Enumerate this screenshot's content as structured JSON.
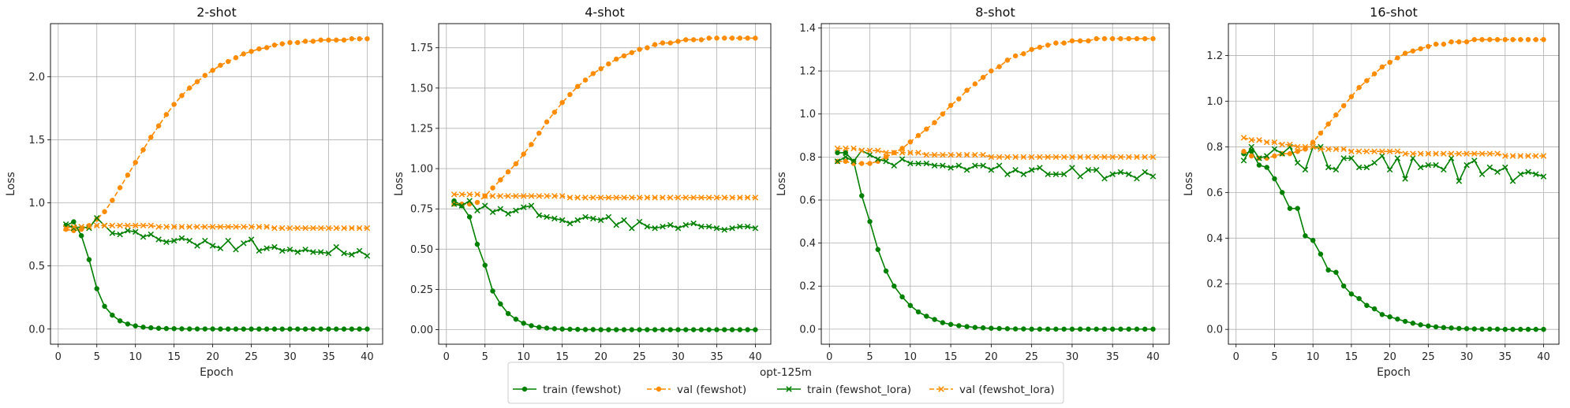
{
  "chart_data": [
    {
      "type": "line",
      "title": "2-shot",
      "xlabel": "Epoch",
      "ylabel": "Loss",
      "xlim": [
        -1,
        42
      ],
      "ylim": [
        -0.12,
        2.42
      ],
      "xticks": [
        0,
        5,
        10,
        15,
        20,
        25,
        30,
        35,
        40
      ],
      "yticks": [
        0.0,
        0.5,
        1.0,
        1.5,
        2.0
      ],
      "ytick_labels": [
        "0.0",
        "0.5",
        "1.0",
        "1.5",
        "2.0"
      ],
      "grid": true,
      "x": [
        1,
        2,
        3,
        4,
        5,
        6,
        7,
        8,
        9,
        10,
        11,
        12,
        13,
        14,
        15,
        16,
        17,
        18,
        19,
        20,
        21,
        22,
        23,
        24,
        25,
        26,
        27,
        28,
        29,
        30,
        31,
        32,
        33,
        34,
        35,
        36,
        37,
        38,
        39,
        40
      ],
      "series": [
        {
          "name": "train (fewshot)",
          "values": [
            0.82,
            0.85,
            0.74,
            0.55,
            0.32,
            0.18,
            0.11,
            0.065,
            0.04,
            0.025,
            0.015,
            0.01,
            0.006,
            0.004,
            0.003,
            0.002,
            0.001,
            0.001,
            0.001,
            0.001,
            0,
            0,
            0,
            0,
            0,
            0,
            0,
            0,
            0,
            0,
            0,
            0,
            0,
            0,
            0,
            0,
            0,
            0,
            0,
            0
          ]
        },
        {
          "name": "val (fewshot)",
          "values": [
            0.79,
            0.78,
            0.79,
            0.82,
            0.87,
            0.93,
            1.02,
            1.12,
            1.22,
            1.32,
            1.42,
            1.52,
            1.61,
            1.7,
            1.78,
            1.85,
            1.91,
            1.96,
            2.01,
            2.05,
            2.09,
            2.12,
            2.15,
            2.18,
            2.2,
            2.22,
            2.23,
            2.25,
            2.26,
            2.27,
            2.27,
            2.28,
            2.28,
            2.29,
            2.29,
            2.29,
            2.29,
            2.3,
            2.3,
            2.3
          ]
        },
        {
          "name": "train (fewshot_lora)",
          "values": [
            0.83,
            0.8,
            0.81,
            0.8,
            0.88,
            0.82,
            0.76,
            0.75,
            0.78,
            0.77,
            0.73,
            0.75,
            0.71,
            0.69,
            0.7,
            0.72,
            0.7,
            0.66,
            0.7,
            0.66,
            0.64,
            0.7,
            0.63,
            0.68,
            0.71,
            0.62,
            0.64,
            0.65,
            0.62,
            0.63,
            0.61,
            0.63,
            0.61,
            0.61,
            0.6,
            0.65,
            0.6,
            0.59,
            0.62,
            0.58
          ]
        },
        {
          "name": "val (fewshot_lora)",
          "values": [
            0.8,
            0.81,
            0.81,
            0.81,
            0.82,
            0.82,
            0.82,
            0.82,
            0.82,
            0.82,
            0.82,
            0.82,
            0.81,
            0.81,
            0.81,
            0.81,
            0.81,
            0.81,
            0.81,
            0.81,
            0.81,
            0.81,
            0.81,
            0.81,
            0.81,
            0.81,
            0.81,
            0.8,
            0.8,
            0.8,
            0.8,
            0.8,
            0.8,
            0.8,
            0.8,
            0.8,
            0.8,
            0.8,
            0.8,
            0.8
          ]
        }
      ]
    },
    {
      "type": "line",
      "title": "4-shot",
      "xlabel": "",
      "ylabel": "Loss",
      "xlim": [
        -1,
        42
      ],
      "ylim": [
        -0.09,
        1.9
      ],
      "xticks": [
        0,
        5,
        10,
        15,
        20,
        25,
        30,
        35,
        40
      ],
      "yticks": [
        0.0,
        0.25,
        0.5,
        0.75,
        1.0,
        1.25,
        1.5,
        1.75
      ],
      "ytick_labels": [
        "0.00",
        "0.25",
        "0.50",
        "0.75",
        "1.00",
        "1.25",
        "1.50",
        "1.75"
      ],
      "grid": true,
      "x": [
        1,
        2,
        3,
        4,
        5,
        6,
        7,
        8,
        9,
        10,
        11,
        12,
        13,
        14,
        15,
        16,
        17,
        18,
        19,
        20,
        21,
        22,
        23,
        24,
        25,
        26,
        27,
        28,
        29,
        30,
        31,
        32,
        33,
        34,
        35,
        36,
        37,
        38,
        39,
        40
      ],
      "series": [
        {
          "name": "train (fewshot)",
          "values": [
            0.8,
            0.77,
            0.7,
            0.53,
            0.4,
            0.24,
            0.16,
            0.1,
            0.065,
            0.04,
            0.025,
            0.015,
            0.01,
            0.006,
            0.004,
            0.003,
            0.002,
            0.001,
            0.001,
            0,
            0,
            0,
            0,
            0,
            0,
            0,
            0,
            0,
            0,
            0,
            0,
            0,
            0,
            0,
            0,
            0,
            0,
            0,
            0,
            0
          ]
        },
        {
          "name": "val (fewshot)",
          "values": [
            0.78,
            0.78,
            0.78,
            0.79,
            0.83,
            0.88,
            0.93,
            0.98,
            1.03,
            1.09,
            1.15,
            1.22,
            1.29,
            1.35,
            1.41,
            1.46,
            1.51,
            1.55,
            1.59,
            1.62,
            1.65,
            1.68,
            1.7,
            1.72,
            1.74,
            1.75,
            1.77,
            1.78,
            1.78,
            1.79,
            1.8,
            1.8,
            1.8,
            1.81,
            1.81,
            1.81,
            1.81,
            1.81,
            1.81,
            1.81
          ]
        },
        {
          "name": "train (fewshot_lora)",
          "values": [
            0.78,
            0.77,
            0.8,
            0.74,
            0.77,
            0.73,
            0.75,
            0.72,
            0.74,
            0.76,
            0.77,
            0.71,
            0.7,
            0.69,
            0.68,
            0.66,
            0.68,
            0.7,
            0.69,
            0.68,
            0.7,
            0.65,
            0.68,
            0.63,
            0.67,
            0.64,
            0.63,
            0.64,
            0.65,
            0.63,
            0.65,
            0.66,
            0.64,
            0.64,
            0.63,
            0.62,
            0.63,
            0.64,
            0.64,
            0.63
          ]
        },
        {
          "name": "val (fewshot_lora)",
          "values": [
            0.84,
            0.84,
            0.84,
            0.84,
            0.83,
            0.83,
            0.83,
            0.83,
            0.83,
            0.83,
            0.83,
            0.83,
            0.83,
            0.83,
            0.83,
            0.82,
            0.82,
            0.82,
            0.82,
            0.82,
            0.82,
            0.82,
            0.82,
            0.82,
            0.82,
            0.82,
            0.82,
            0.82,
            0.82,
            0.82,
            0.82,
            0.82,
            0.82,
            0.82,
            0.82,
            0.82,
            0.82,
            0.82,
            0.82,
            0.82
          ]
        }
      ]
    },
    {
      "type": "line",
      "title": "8-shot",
      "xlabel": "",
      "ylabel": "Loss",
      "xlim": [
        -1,
        42
      ],
      "ylim": [
        -0.07,
        1.42
      ],
      "xticks": [
        0,
        5,
        10,
        15,
        20,
        25,
        30,
        35,
        40
      ],
      "yticks": [
        0.0,
        0.2,
        0.4,
        0.6,
        0.8,
        1.0,
        1.2,
        1.4
      ],
      "ytick_labels": [
        "0.0",
        "0.2",
        "0.4",
        "0.6",
        "0.8",
        "1.0",
        "1.2",
        "1.4"
      ],
      "grid": true,
      "x": [
        1,
        2,
        3,
        4,
        5,
        6,
        7,
        8,
        9,
        10,
        11,
        12,
        13,
        14,
        15,
        16,
        17,
        18,
        19,
        20,
        21,
        22,
        23,
        24,
        25,
        26,
        27,
        28,
        29,
        30,
        31,
        32,
        33,
        34,
        35,
        36,
        37,
        38,
        39,
        40
      ],
      "series": [
        {
          "name": "train (fewshot)",
          "values": [
            0.82,
            0.82,
            0.78,
            0.62,
            0.5,
            0.37,
            0.27,
            0.2,
            0.15,
            0.11,
            0.08,
            0.06,
            0.045,
            0.03,
            0.022,
            0.016,
            0.012,
            0.008,
            0.006,
            0.004,
            0.003,
            0.002,
            0.001,
            0.001,
            0,
            0,
            0,
            0,
            0,
            0,
            0,
            0,
            0,
            0,
            0,
            0,
            0,
            0,
            0,
            0
          ]
        },
        {
          "name": "val (fewshot)",
          "values": [
            0.78,
            0.78,
            0.77,
            0.77,
            0.77,
            0.78,
            0.8,
            0.82,
            0.84,
            0.87,
            0.9,
            0.93,
            0.96,
            1.0,
            1.04,
            1.07,
            1.11,
            1.14,
            1.17,
            1.2,
            1.22,
            1.25,
            1.27,
            1.28,
            1.3,
            1.31,
            1.32,
            1.33,
            1.33,
            1.34,
            1.34,
            1.34,
            1.35,
            1.35,
            1.35,
            1.35,
            1.35,
            1.35,
            1.35,
            1.35
          ]
        },
        {
          "name": "train (fewshot_lora)",
          "values": [
            0.78,
            0.8,
            0.78,
            0.83,
            0.81,
            0.79,
            0.78,
            0.76,
            0.79,
            0.77,
            0.77,
            0.77,
            0.76,
            0.76,
            0.75,
            0.76,
            0.74,
            0.76,
            0.76,
            0.74,
            0.76,
            0.72,
            0.74,
            0.72,
            0.74,
            0.75,
            0.72,
            0.72,
            0.72,
            0.75,
            0.71,
            0.74,
            0.74,
            0.7,
            0.72,
            0.73,
            0.72,
            0.7,
            0.73,
            0.71
          ]
        },
        {
          "name": "val (fewshot_lora)",
          "values": [
            0.84,
            0.84,
            0.84,
            0.83,
            0.83,
            0.83,
            0.82,
            0.82,
            0.82,
            0.82,
            0.82,
            0.81,
            0.81,
            0.81,
            0.81,
            0.81,
            0.81,
            0.81,
            0.81,
            0.8,
            0.8,
            0.8,
            0.8,
            0.8,
            0.8,
            0.8,
            0.8,
            0.8,
            0.8,
            0.8,
            0.8,
            0.8,
            0.8,
            0.8,
            0.8,
            0.8,
            0.8,
            0.8,
            0.8,
            0.8
          ]
        }
      ]
    },
    {
      "type": "line",
      "title": "16-shot",
      "xlabel": "Epoch",
      "ylabel": "Loss",
      "xlim": [
        -1,
        42
      ],
      "ylim": [
        -0.065,
        1.34
      ],
      "xticks": [
        0,
        5,
        10,
        15,
        20,
        25,
        30,
        35,
        40
      ],
      "yticks": [
        0.0,
        0.2,
        0.4,
        0.6,
        0.8,
        1.0,
        1.2
      ],
      "ytick_labels": [
        "0.0",
        "0.2",
        "0.4",
        "0.6",
        "0.8",
        "1.0",
        "1.2"
      ],
      "grid": true,
      "x": [
        1,
        2,
        3,
        4,
        5,
        6,
        7,
        8,
        9,
        10,
        11,
        12,
        13,
        14,
        15,
        16,
        17,
        18,
        19,
        20,
        21,
        22,
        23,
        24,
        25,
        26,
        27,
        28,
        29,
        30,
        31,
        32,
        33,
        34,
        35,
        36,
        37,
        38,
        39,
        40
      ],
      "series": [
        {
          "name": "train (fewshot)",
          "values": [
            0.77,
            0.78,
            0.72,
            0.71,
            0.66,
            0.6,
            0.53,
            0.53,
            0.41,
            0.39,
            0.33,
            0.26,
            0.25,
            0.19,
            0.155,
            0.135,
            0.105,
            0.09,
            0.065,
            0.055,
            0.045,
            0.035,
            0.027,
            0.02,
            0.015,
            0.011,
            0.008,
            0.006,
            0.004,
            0.003,
            0.002,
            0.001,
            0.001,
            0.001,
            0,
            0,
            0,
            0,
            0,
            0
          ]
        },
        {
          "name": "val (fewshot)",
          "values": [
            0.78,
            0.76,
            0.75,
            0.75,
            0.76,
            0.77,
            0.77,
            0.78,
            0.79,
            0.82,
            0.86,
            0.9,
            0.94,
            0.98,
            1.02,
            1.06,
            1.09,
            1.12,
            1.15,
            1.17,
            1.19,
            1.21,
            1.22,
            1.23,
            1.24,
            1.25,
            1.25,
            1.26,
            1.26,
            1.26,
            1.27,
            1.27,
            1.27,
            1.27,
            1.27,
            1.27,
            1.27,
            1.27,
            1.27,
            1.27
          ]
        },
        {
          "name": "train (fewshot_lora)",
          "values": [
            0.74,
            0.8,
            0.75,
            0.76,
            0.79,
            0.77,
            0.8,
            0.73,
            0.7,
            0.8,
            0.8,
            0.71,
            0.7,
            0.75,
            0.75,
            0.71,
            0.71,
            0.73,
            0.76,
            0.7,
            0.75,
            0.66,
            0.75,
            0.71,
            0.72,
            0.72,
            0.7,
            0.75,
            0.65,
            0.72,
            0.74,
            0.68,
            0.71,
            0.69,
            0.71,
            0.65,
            0.68,
            0.69,
            0.68,
            0.67
          ]
        },
        {
          "name": "val (fewshot_lora)",
          "values": [
            0.84,
            0.83,
            0.83,
            0.82,
            0.82,
            0.81,
            0.81,
            0.8,
            0.8,
            0.8,
            0.79,
            0.79,
            0.79,
            0.79,
            0.78,
            0.78,
            0.78,
            0.78,
            0.78,
            0.78,
            0.78,
            0.77,
            0.77,
            0.77,
            0.77,
            0.77,
            0.77,
            0.77,
            0.77,
            0.77,
            0.77,
            0.77,
            0.77,
            0.77,
            0.76,
            0.76,
            0.76,
            0.76,
            0.76,
            0.76
          ]
        }
      ]
    }
  ],
  "legend": {
    "title": "opt-125m",
    "entries": [
      {
        "label": "train (fewshot)",
        "color": "#008000",
        "linestyle": "solid",
        "marker": "o"
      },
      {
        "label": "val (fewshot)",
        "color": "#ff8c00",
        "linestyle": "dashed",
        "marker": "o"
      },
      {
        "label": "train (fewshot_lora)",
        "color": "#008000",
        "linestyle": "solid",
        "marker": "x"
      },
      {
        "label": "val (fewshot_lora)",
        "color": "#ff8c00",
        "linestyle": "dashed",
        "marker": "x"
      }
    ]
  }
}
